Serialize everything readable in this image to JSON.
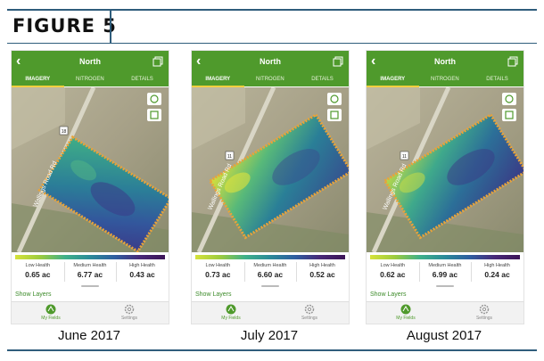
{
  "figure": {
    "title": "FIGURE 5"
  },
  "panels": [
    {
      "caption": "June 2017",
      "app": {
        "header_title": "North",
        "tabs": [
          "IMAGERY",
          "NITROGEN",
          "DETAILS"
        ],
        "road_label": "Wallings Road Rd",
        "road_marker": "18",
        "legend": [
          {
            "label": "Low Health",
            "value": "0.65 ac"
          },
          {
            "label": "Medium Health",
            "value": "6.77 ac"
          },
          {
            "label": "High Health",
            "value": "0.43 ac"
          }
        ],
        "show_layers": "Show Layers",
        "nav": [
          "My Fields",
          "Settings"
        ]
      }
    },
    {
      "caption": "July 2017",
      "app": {
        "header_title": "North",
        "tabs": [
          "IMAGERY",
          "NITROGEN",
          "DETAILS"
        ],
        "road_label": "Wallings Road Rd",
        "road_marker": "11",
        "legend": [
          {
            "label": "Low Health",
            "value": "0.73 ac"
          },
          {
            "label": "Medium Health",
            "value": "6.60 ac"
          },
          {
            "label": "High Health",
            "value": "0.52 ac"
          }
        ],
        "show_layers": "Show Layers",
        "nav": [
          "My Fields",
          "Settings"
        ]
      }
    },
    {
      "caption": "August 2017",
      "app": {
        "header_title": "North",
        "tabs": [
          "IMAGERY",
          "NITROGEN",
          "DETAILS"
        ],
        "road_label": "Wallings Road Rd",
        "road_marker": "11",
        "legend": [
          {
            "label": "Low Health",
            "value": "0.62 ac"
          },
          {
            "label": "Medium Health",
            "value": "6.99 ac"
          },
          {
            "label": "High Health",
            "value": "0.24 ac"
          }
        ],
        "show_layers": "Show Layers",
        "nav": [
          "My Fields",
          "Settings"
        ]
      }
    }
  ],
  "colors": {
    "app_green": "#4f9a2c",
    "frame_blue": "#2f5d7c",
    "boundary_orange": "#e8a33a",
    "tab_underline": "#f4d03f"
  }
}
